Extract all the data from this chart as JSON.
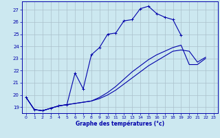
{
  "title": "Graphe des températures (°c)",
  "bg_color": "#cce8f0",
  "grid_color": "#aac0cc",
  "line_color": "#0000aa",
  "xlim": [
    -0.5,
    23.5
  ],
  "ylim": [
    18.5,
    27.7
  ],
  "yticks": [
    19,
    20,
    21,
    22,
    23,
    24,
    25,
    26,
    27
  ],
  "xticks": [
    0,
    1,
    2,
    3,
    4,
    5,
    6,
    7,
    8,
    9,
    10,
    11,
    12,
    13,
    14,
    15,
    16,
    17,
    18,
    19,
    20,
    21,
    22,
    23
  ],
  "curve1_x": [
    0,
    1,
    2,
    3,
    4,
    5,
    6,
    7,
    8,
    9,
    10,
    11,
    12,
    13,
    14,
    15,
    16,
    17,
    18,
    19
  ],
  "curve1_y": [
    19.8,
    18.8,
    18.7,
    18.9,
    19.1,
    19.2,
    21.8,
    20.5,
    23.3,
    23.9,
    25.0,
    25.1,
    26.1,
    26.2,
    27.1,
    27.3,
    26.7,
    26.4,
    26.2,
    24.9
  ],
  "curve2_x": [
    0,
    1,
    2,
    3,
    4,
    5,
    6,
    7,
    8,
    9,
    10,
    11,
    12,
    13,
    14,
    15,
    16,
    17,
    18,
    19,
    20,
    21,
    22,
    23
  ],
  "curve2_y": [
    19.8,
    18.8,
    18.7,
    18.9,
    19.1,
    19.2,
    19.3,
    19.4,
    19.5,
    19.7,
    20.0,
    20.4,
    20.9,
    21.4,
    21.9,
    22.4,
    22.8,
    23.2,
    23.6,
    23.7,
    23.6,
    22.7,
    23.1,
    null
  ],
  "curve3_x": [
    0,
    1,
    2,
    3,
    4,
    5,
    6,
    7,
    8,
    9,
    10,
    11,
    12,
    13,
    14,
    15,
    16,
    17,
    18,
    19,
    20,
    21,
    22,
    23
  ],
  "curve3_y": [
    19.8,
    18.8,
    18.7,
    18.9,
    19.1,
    19.2,
    19.3,
    19.4,
    19.5,
    19.8,
    20.2,
    20.7,
    21.3,
    21.9,
    22.4,
    22.9,
    23.3,
    23.6,
    23.9,
    24.1,
    22.5,
    22.5,
    23.0,
    null
  ]
}
